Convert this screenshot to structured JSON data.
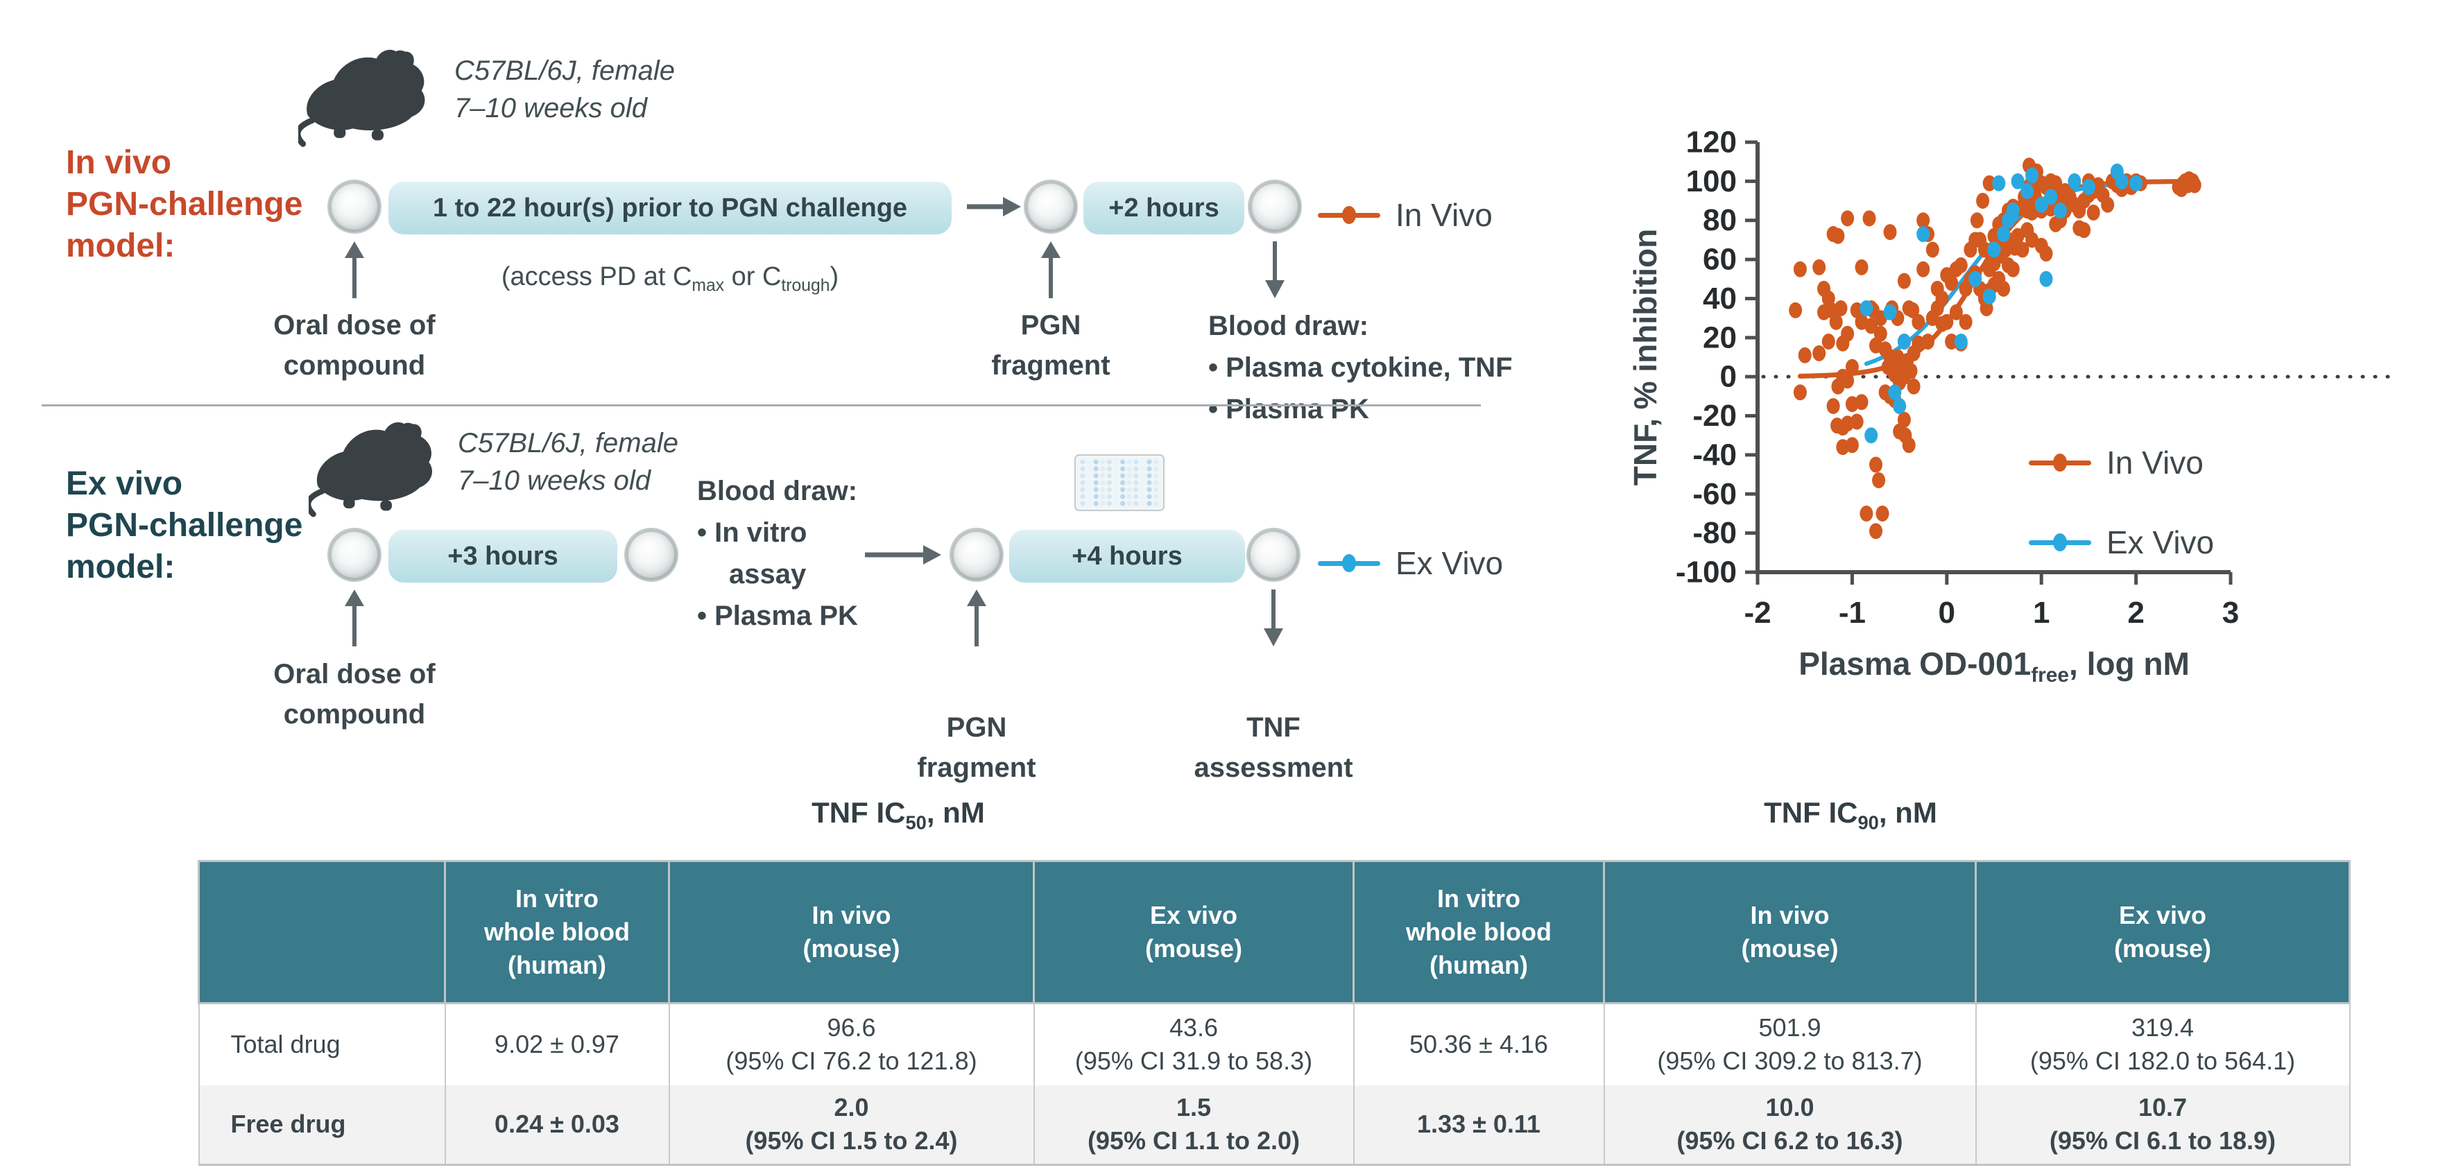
{
  "colors": {
    "accent_red": "#c7492b",
    "accent_teal_dark": "#1f4650",
    "table_header_teal": "#397a8b",
    "orange": "#d2591f",
    "blue": "#29a8e0",
    "box_teal": "#c6e4ea",
    "text_dark": "#3c474c"
  },
  "in_vivo": {
    "label_l1": "In vivo",
    "label_l2": "PGN-challenge",
    "label_l3": "model:",
    "mouse_line1": "C57BL/6J, female",
    "mouse_line2": "7–10 weeks old",
    "timeline1": "1 to 22 hour(s) prior to PGN challenge",
    "note_p1": "(access PD at C",
    "note_s1": "max",
    "note_p2": " or C",
    "note_s2": "trough",
    "note_p3": ")",
    "oral_l1": "Oral dose of",
    "oral_l2": "compound",
    "timeline2": "+2 hours",
    "pgn_l1": "PGN",
    "pgn_l2": "fragment",
    "blood_title": "Blood draw:",
    "blood_b1": "•  Plasma cytokine, TNF",
    "blood_b2": "•  Plasma PK",
    "legend": "In Vivo"
  },
  "ex_vivo": {
    "label_l1": "Ex vivo",
    "label_l2": "PGN-challenge",
    "label_l3": "model:",
    "mouse_line1": "C57BL/6J, female",
    "mouse_line2": "7–10 weeks old",
    "timeline1": "+3 hours",
    "oral_l1": "Oral dose of",
    "oral_l2": "compound",
    "blood_title": "Blood draw:",
    "blood_b1": "•  In vitro",
    "blood_b1b": "assay",
    "blood_b2": "•  Plasma PK",
    "timeline2": "+4 hours",
    "pgn_l1": "PGN",
    "pgn_l2": "fragment",
    "tnf_l1": "TNF",
    "tnf_l2": "assessment",
    "legend": "Ex Vivo"
  },
  "chart_data": {
    "type": "scatter",
    "ylabel": "TNF, % inhibition",
    "xlabel_parts": {
      "p1": "Plasma OD-001",
      "sub": "free",
      "p2": ", log nM"
    },
    "xlim": [
      -2,
      3
    ],
    "ylim": [
      -100,
      120
    ],
    "x_ticks": [
      -2,
      -1,
      0,
      1,
      2,
      3
    ],
    "y_ticks": [
      -100,
      -80,
      -60,
      -40,
      -20,
      0,
      20,
      40,
      60,
      80,
      100,
      120
    ],
    "zero_line": true,
    "grid": false,
    "legend_position": "inside lower right",
    "legend": [
      {
        "label": "In Vivo",
        "color": "#d2591f"
      },
      {
        "label": "Ex Vivo",
        "color": "#29a8e0"
      }
    ],
    "series": [
      {
        "name": "In Vivo",
        "color": "#d2591f",
        "curve": {
          "bottom": 0,
          "top": 100,
          "logIC50": 0.3,
          "hill": 1.37,
          "x_start": -1.55,
          "x_end": 2.62
        },
        "points": [
          [
            -1.55,
            55
          ],
          [
            -1.6,
            34
          ],
          [
            -1.5,
            11
          ],
          [
            -1.55,
            -8
          ],
          [
            -1.35,
            56
          ],
          [
            -1.2,
            73
          ],
          [
            -1.05,
            81
          ],
          [
            -1.15,
            72
          ],
          [
            -1.3,
            45
          ],
          [
            -1.25,
            40
          ],
          [
            -1.12,
            35
          ],
          [
            -1.22,
            34
          ],
          [
            -1.3,
            33
          ],
          [
            -1.17,
            28
          ],
          [
            -1.05,
            22
          ],
          [
            -1.25,
            18
          ],
          [
            -1.1,
            17
          ],
          [
            -1.35,
            12
          ],
          [
            -1.0,
            5
          ],
          [
            -1.1,
            0
          ],
          [
            -1.05,
            -2
          ],
          [
            -1.15,
            -5
          ],
          [
            -1.2,
            -15
          ],
          [
            -1.0,
            -14
          ],
          [
            -1.05,
            -24
          ],
          [
            -1.1,
            -26
          ],
          [
            -1.16,
            -25
          ],
          [
            -1.0,
            -35
          ],
          [
            -1.1,
            -36
          ],
          [
            -0.95,
            -23
          ],
          [
            -0.9,
            -13
          ],
          [
            -0.85,
            -70
          ],
          [
            -0.75,
            -79
          ],
          [
            -0.95,
            34
          ],
          [
            -0.9,
            28
          ],
          [
            -0.75,
            -45
          ],
          [
            -0.72,
            -53
          ],
          [
            -0.68,
            -70
          ],
          [
            -0.9,
            56
          ],
          [
            -0.8,
            35
          ],
          [
            -0.78,
            34
          ],
          [
            -0.7,
            30
          ],
          [
            -0.8,
            26
          ],
          [
            -0.7,
            22
          ],
          [
            -0.75,
            16
          ],
          [
            -0.65,
            14
          ],
          [
            -0.6,
            10
          ],
          [
            -0.55,
            7
          ],
          [
            -0.62,
            5
          ],
          [
            -0.5,
            3
          ],
          [
            -0.55,
            1
          ],
          [
            -0.45,
            0
          ],
          [
            -0.5,
            -3
          ],
          [
            -0.6,
            -10
          ],
          [
            -0.55,
            -12
          ],
          [
            -0.5,
            -15
          ],
          [
            -0.65,
            -8
          ],
          [
            -0.35,
            -5
          ],
          [
            -0.45,
            -22
          ],
          [
            -0.5,
            -28
          ],
          [
            -0.44,
            -30
          ],
          [
            -0.4,
            -35
          ],
          [
            -0.82,
            81
          ],
          [
            -0.6,
            74
          ],
          [
            -0.45,
            49
          ],
          [
            -0.4,
            35
          ],
          [
            -0.36,
            34
          ],
          [
            -0.3,
            28
          ],
          [
            -0.45,
            18
          ],
          [
            -0.35,
            12
          ],
          [
            -0.3,
            17
          ],
          [
            -0.52,
            30
          ],
          [
            -0.58,
            35
          ],
          [
            -0.42,
            8
          ],
          [
            -0.38,
            3
          ],
          [
            -0.48,
            5
          ],
          [
            -0.52,
            10
          ],
          [
            -0.25,
            80
          ],
          [
            -0.2,
            73
          ],
          [
            -0.15,
            65
          ],
          [
            -0.25,
            55
          ],
          [
            -0.1,
            45
          ],
          [
            -0.05,
            40
          ],
          [
            0.0,
            52
          ],
          [
            0.05,
            48
          ],
          [
            -0.1,
            35
          ],
          [
            -0.15,
            30
          ],
          [
            0.0,
            28
          ],
          [
            0.1,
            55
          ],
          [
            0.15,
            57
          ],
          [
            0.2,
            45
          ],
          [
            0.1,
            33
          ],
          [
            0.2,
            28
          ],
          [
            0.05,
            18
          ],
          [
            0.15,
            17
          ],
          [
            0.25,
            50
          ],
          [
            0.3,
            53
          ],
          [
            -0.05,
            27
          ],
          [
            -0.2,
            18
          ],
          [
            0.25,
            65
          ],
          [
            0.3,
            70
          ],
          [
            0.32,
            80
          ],
          [
            0.38,
            90
          ],
          [
            0.45,
            99
          ],
          [
            0.35,
            70
          ],
          [
            0.4,
            65
          ],
          [
            0.5,
            72
          ],
          [
            0.55,
            66
          ],
          [
            0.5,
            58
          ],
          [
            0.45,
            55
          ],
          [
            0.55,
            50
          ],
          [
            0.6,
            45
          ],
          [
            0.6,
            80
          ],
          [
            0.65,
            85
          ],
          [
            0.7,
            87
          ],
          [
            0.65,
            70
          ],
          [
            0.72,
            66
          ],
          [
            0.75,
            72
          ],
          [
            0.76,
            86
          ],
          [
            0.8,
            87
          ],
          [
            0.8,
            65
          ],
          [
            0.62,
            65
          ],
          [
            0.55,
            78
          ],
          [
            0.45,
            44
          ],
          [
            0.5,
            47
          ],
          [
            0.65,
            57
          ],
          [
            0.7,
            55
          ],
          [
            0.35,
            45
          ],
          [
            0.4,
            40
          ],
          [
            0.42,
            35
          ],
          [
            0.58,
            62
          ],
          [
            0.85,
            88
          ],
          [
            0.9,
            87
          ],
          [
            0.85,
            85
          ],
          [
            0.9,
            84
          ],
          [
            0.95,
            86
          ],
          [
            0.95,
            90
          ],
          [
            1.0,
            88
          ],
          [
            1.0,
            85
          ],
          [
            0.9,
            95
          ],
          [
            0.95,
            100
          ],
          [
            1.0,
            99
          ],
          [
            1.05,
            97
          ],
          [
            1.05,
            87
          ],
          [
            1.1,
            86
          ],
          [
            1.1,
            90
          ],
          [
            1.15,
            92
          ],
          [
            1.2,
            88
          ],
          [
            0.85,
            75
          ],
          [
            0.9,
            70
          ],
          [
            1.0,
            67
          ],
          [
            1.05,
            63
          ],
          [
            1.15,
            78
          ],
          [
            1.2,
            80
          ],
          [
            0.87,
            108
          ],
          [
            0.95,
            105
          ],
          [
            1.1,
            100
          ],
          [
            1.15,
            99
          ],
          [
            1.25,
            95
          ],
          [
            1.3,
            92
          ],
          [
            1.25,
            85
          ],
          [
            0.82,
            92
          ],
          [
            0.88,
            98
          ],
          [
            0.93,
            93
          ],
          [
            1.35,
            88
          ],
          [
            1.4,
            85
          ],
          [
            1.45,
            90
          ],
          [
            1.5,
            93
          ],
          [
            1.55,
            95
          ],
          [
            1.6,
            98
          ],
          [
            1.5,
            100
          ],
          [
            1.65,
            93
          ],
          [
            1.7,
            88
          ],
          [
            1.4,
            76
          ],
          [
            1.45,
            75
          ],
          [
            1.55,
            84
          ],
          [
            1.75,
            100
          ],
          [
            1.8,
            98
          ],
          [
            1.85,
            96
          ],
          [
            1.9,
            100
          ],
          [
            2.0,
            100
          ],
          [
            2.05,
            99
          ],
          [
            1.95,
            97
          ],
          [
            2.45,
            97
          ],
          [
            2.5,
            99
          ],
          [
            2.52,
            100
          ],
          [
            2.55,
            98
          ],
          [
            2.58,
            100
          ],
          [
            2.6,
            99
          ],
          [
            2.62,
            98
          ],
          [
            2.48,
            96
          ],
          [
            2.56,
            101
          ],
          [
            2.6,
            100
          ]
        ]
      },
      {
        "name": "Ex Vivo",
        "color": "#29a8e0",
        "curve": {
          "bottom": 0,
          "top": 100,
          "logIC50": 0.176,
          "hill": 1.12,
          "x_start": -0.85,
          "x_end": 2.0
        },
        "points": [
          [
            -0.8,
            -30
          ],
          [
            -0.55,
            -8
          ],
          [
            -0.5,
            -15
          ],
          [
            -0.85,
            35
          ],
          [
            -0.6,
            33
          ],
          [
            -0.45,
            18
          ],
          [
            -0.25,
            73
          ],
          [
            0.15,
            18
          ],
          [
            0.3,
            50
          ],
          [
            0.45,
            41
          ],
          [
            0.5,
            65
          ],
          [
            0.55,
            99
          ],
          [
            0.6,
            73
          ],
          [
            0.65,
            80
          ],
          [
            0.7,
            85
          ],
          [
            0.75,
            100
          ],
          [
            0.85,
            95
          ],
          [
            0.9,
            103
          ],
          [
            1.0,
            88
          ],
          [
            1.05,
            50
          ],
          [
            1.1,
            92
          ],
          [
            1.2,
            85
          ],
          [
            1.35,
            100
          ],
          [
            1.5,
            97
          ],
          [
            1.8,
            105
          ],
          [
            1.85,
            100
          ],
          [
            2.0,
            99
          ]
        ]
      }
    ]
  },
  "table": {
    "titles": [
      {
        "main": "TNF IC",
        "sub": "50",
        "unit": ", nM"
      },
      {
        "main": "TNF IC",
        "sub": "90",
        "unit": ", nM"
      }
    ],
    "headers": [
      {
        "l1": "In vitro",
        "l2": "whole blood",
        "l3": "(human)"
      },
      {
        "l1": "In vivo",
        "l2": "(mouse)",
        "l3": ""
      },
      {
        "l1": "Ex vivo",
        "l2": "(mouse)",
        "l3": ""
      },
      {
        "l1": "In vitro",
        "l2": "whole blood",
        "l3": "(human)"
      },
      {
        "l1": "In vivo",
        "l2": "(mouse)",
        "l3": ""
      },
      {
        "l1": "Ex vivo",
        "l2": "(mouse)",
        "l3": ""
      }
    ],
    "rows": [
      {
        "label": "Total drug",
        "values": [
          {
            "main": "9.02 ± 0.97",
            "ci": ""
          },
          {
            "main": "96.6",
            "ci": "(95% CI 76.2 to 121.8)"
          },
          {
            "main": "43.6",
            "ci": "(95% CI 31.9 to 58.3)"
          },
          {
            "main": "50.36 ± 4.16",
            "ci": ""
          },
          {
            "main": "501.9",
            "ci": "(95% CI 309.2 to 813.7)"
          },
          {
            "main": "319.4",
            "ci": "(95% CI 182.0 to 564.1)"
          }
        ]
      },
      {
        "label": "Free drug",
        "values": [
          {
            "main": "0.24 ± 0.03",
            "ci": ""
          },
          {
            "main": "2.0",
            "ci": "(95% CI 1.5 to 2.4)"
          },
          {
            "main": "1.5",
            "ci": "(95% CI 1.1 to 2.0)"
          },
          {
            "main": "1.33 ± 0.11",
            "ci": ""
          },
          {
            "main": "10.0",
            "ci": "(95% CI 6.2 to 16.3)"
          },
          {
            "main": "10.7",
            "ci": "(95% CI 6.1 to 18.9)"
          }
        ]
      }
    ]
  }
}
